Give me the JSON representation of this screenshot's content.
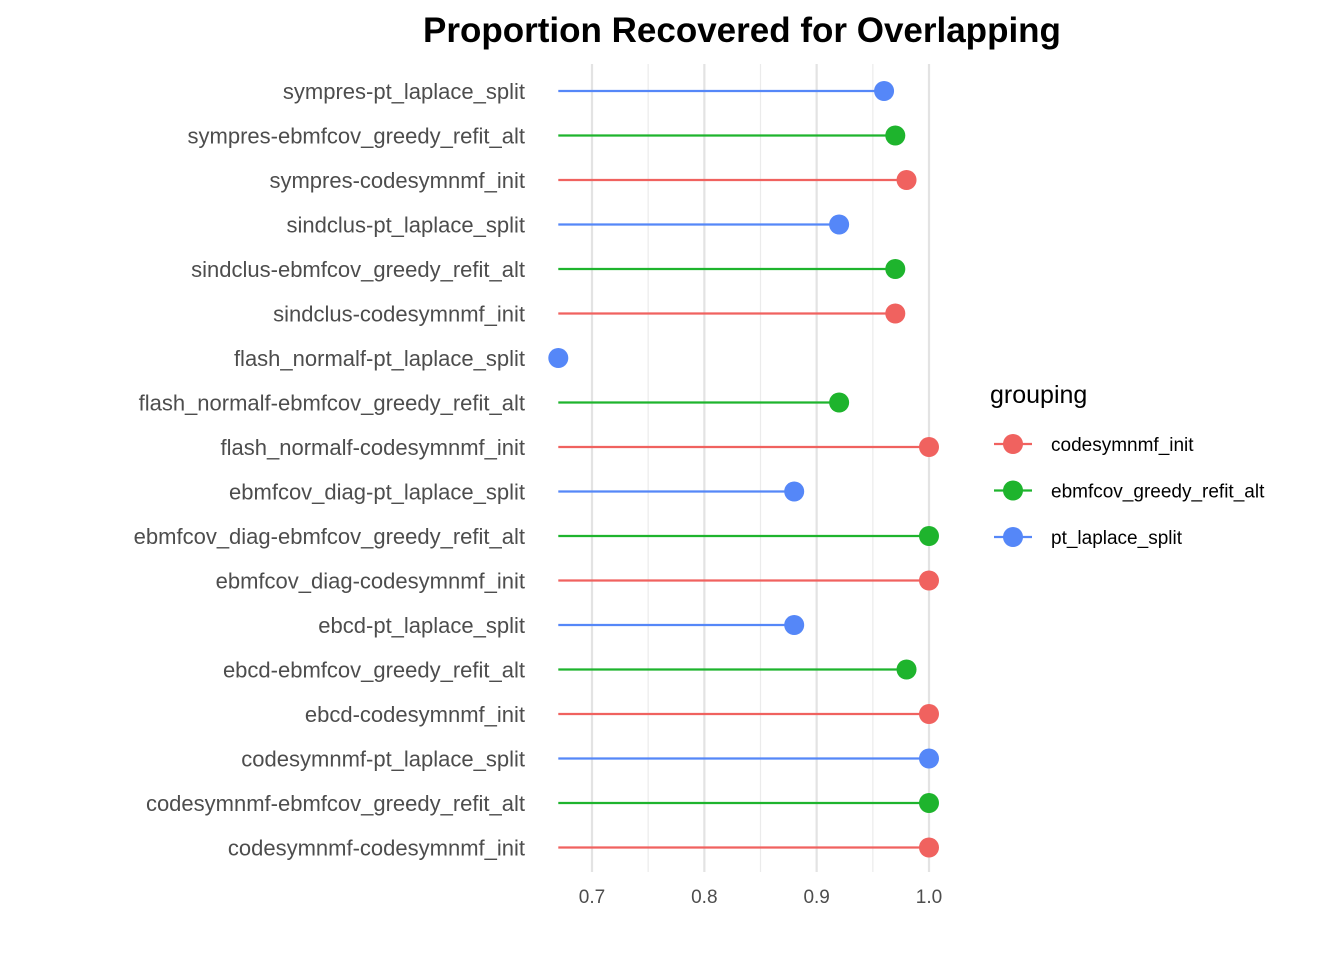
{
  "chart_data": {
    "type": "lollipop",
    "title": "Proportion Recovered for Overlapping",
    "xlabel": "",
    "ylabel": "",
    "xlim": [
      0.67,
      1.0
    ],
    "baseline": 0.67,
    "x_ticks": [
      {
        "value": 0.7,
        "label": "0.7"
      },
      {
        "value": 0.8,
        "label": "0.8"
      },
      {
        "value": 0.9,
        "label": "0.9"
      },
      {
        "value": 1.0,
        "label": "1.0"
      }
    ],
    "minor_ticks": [
      0.75,
      0.85,
      0.95
    ],
    "grid": true,
    "legend": {
      "title": "grouping",
      "placement": "right",
      "entries": [
        "codesymnmf_init",
        "ebmfcov_greedy_refit_alt",
        "pt_laplace_split"
      ]
    },
    "colors": {
      "codesymnmf_init": "#F0625F",
      "ebmfcov_greedy_refit_alt": "#1EB42D",
      "pt_laplace_split": "#5587F8"
    },
    "categories": [
      {
        "label": "sympres-pt_laplace_split",
        "group": "pt_laplace_split",
        "value": 0.96
      },
      {
        "label": "sympres-ebmfcov_greedy_refit_alt",
        "group": "ebmfcov_greedy_refit_alt",
        "value": 0.97
      },
      {
        "label": "sympres-codesymnmf_init",
        "group": "codesymnmf_init",
        "value": 0.98
      },
      {
        "label": "sindclus-pt_laplace_split",
        "group": "pt_laplace_split",
        "value": 0.92
      },
      {
        "label": "sindclus-ebmfcov_greedy_refit_alt",
        "group": "ebmfcov_greedy_refit_alt",
        "value": 0.97
      },
      {
        "label": "sindclus-codesymnmf_init",
        "group": "codesymnmf_init",
        "value": 0.97
      },
      {
        "label": "flash_normalf-pt_laplace_split",
        "group": "pt_laplace_split",
        "value": 0.67
      },
      {
        "label": "flash_normalf-ebmfcov_greedy_refit_alt",
        "group": "ebmfcov_greedy_refit_alt",
        "value": 0.92
      },
      {
        "label": "flash_normalf-codesymnmf_init",
        "group": "codesymnmf_init",
        "value": 1.0
      },
      {
        "label": "ebmfcov_diag-pt_laplace_split",
        "group": "pt_laplace_split",
        "value": 0.88
      },
      {
        "label": "ebmfcov_diag-ebmfcov_greedy_refit_alt",
        "group": "ebmfcov_greedy_refit_alt",
        "value": 1.0
      },
      {
        "label": "ebmfcov_diag-codesymnmf_init",
        "group": "codesymnmf_init",
        "value": 1.0
      },
      {
        "label": "ebcd-pt_laplace_split",
        "group": "pt_laplace_split",
        "value": 0.88
      },
      {
        "label": "ebcd-ebmfcov_greedy_refit_alt",
        "group": "ebmfcov_greedy_refit_alt",
        "value": 0.98
      },
      {
        "label": "ebcd-codesymnmf_init",
        "group": "codesymnmf_init",
        "value": 1.0
      },
      {
        "label": "codesymnmf-pt_laplace_split",
        "group": "pt_laplace_split",
        "value": 1.0
      },
      {
        "label": "codesymnmf-ebmfcov_greedy_refit_alt",
        "group": "ebmfcov_greedy_refit_alt",
        "value": 1.0
      },
      {
        "label": "codesymnmf-codesymnmf_init",
        "group": "codesymnmf_init",
        "value": 1.0
      }
    ]
  }
}
